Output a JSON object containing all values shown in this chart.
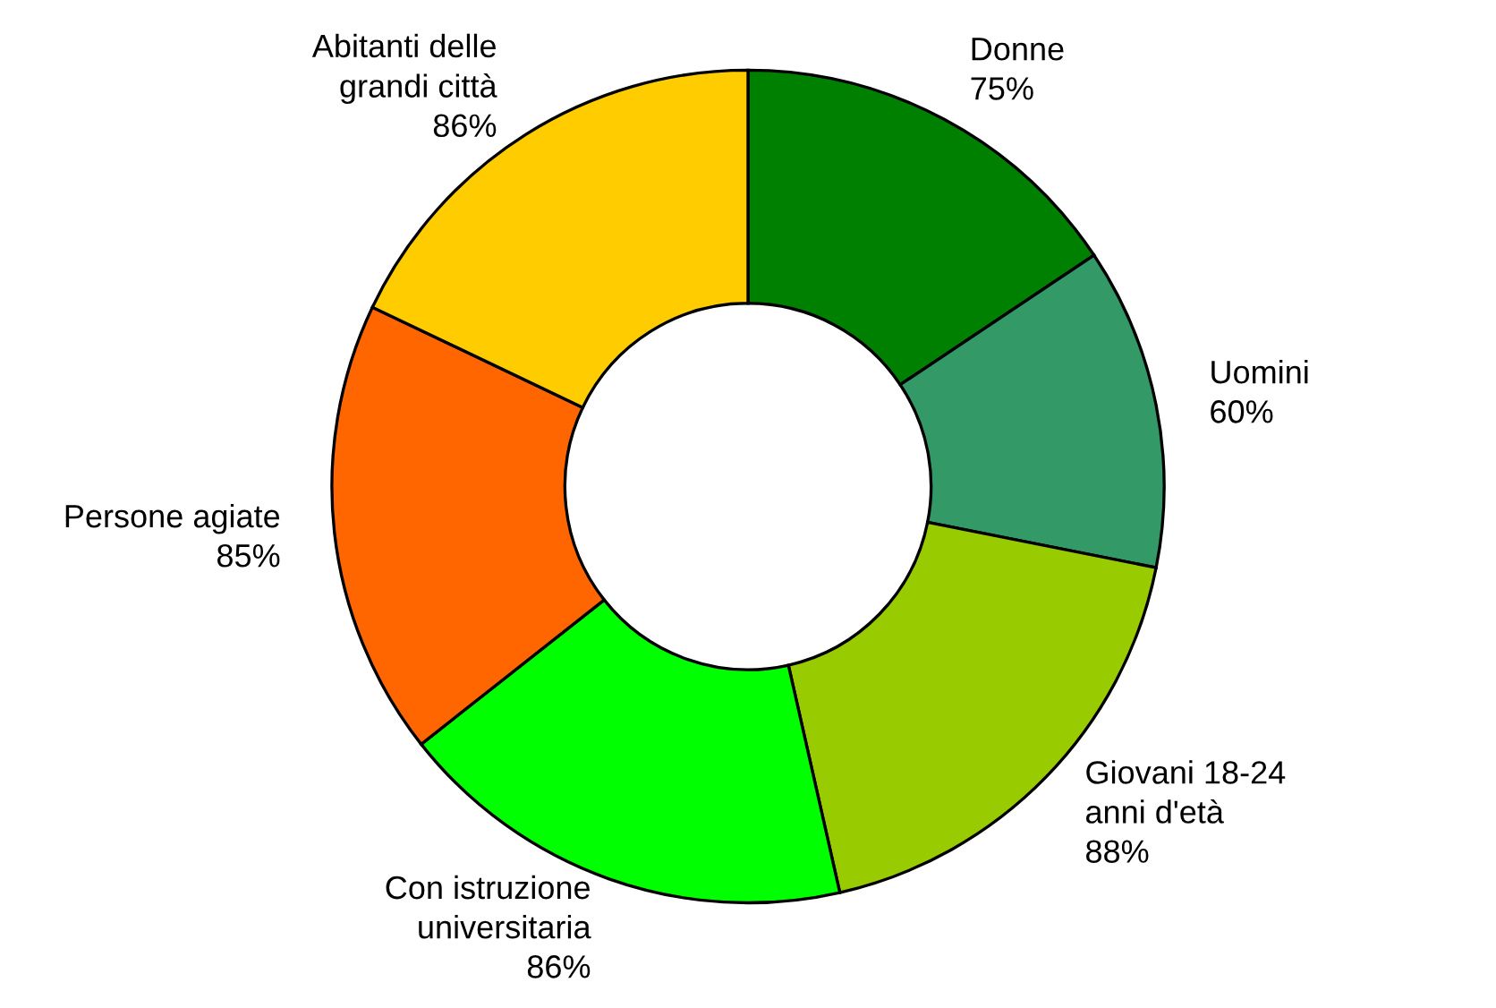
{
  "chart_data": {
    "type": "donut",
    "categories": [
      "Donne",
      "Uomini",
      "Giovani 18-24\nanni d'età",
      "Con istruzione\nuniversitaria",
      "Persone agiate",
      "Abitanti delle\ngrandi città"
    ],
    "values": [
      75,
      60,
      88,
      86,
      85,
      86
    ],
    "colors": [
      "#008000",
      "#339966",
      "#99cc00",
      "#00ff00",
      "#ff6600",
      "#ffcc00"
    ],
    "value_labels": [
      "75%",
      "60%",
      "88%",
      "86%",
      "85%",
      "86%"
    ],
    "legend": false
  }
}
